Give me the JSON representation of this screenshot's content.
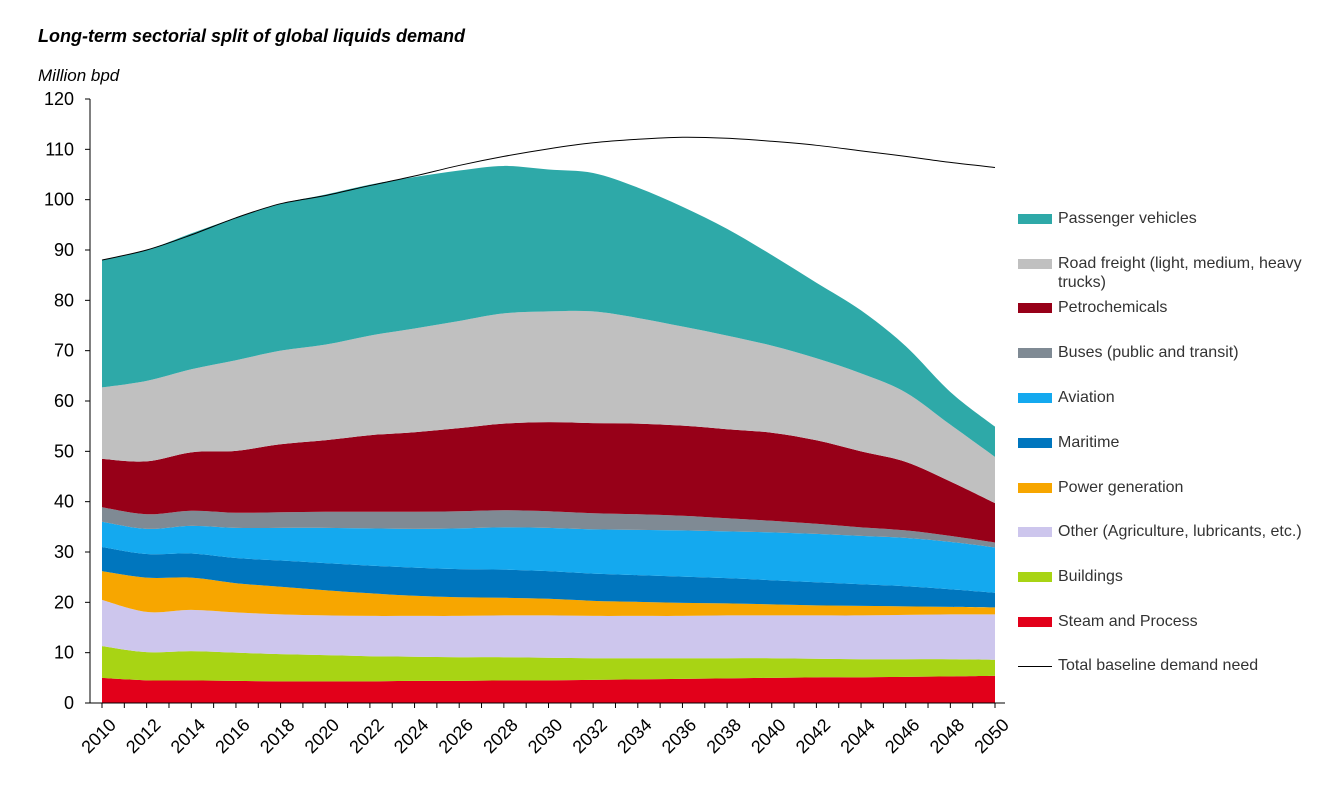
{
  "chart_data": {
    "type": "area",
    "title": "Long-term sectorial split of global liquids demand",
    "ylabel": "Million bpd",
    "xlabel": "",
    "ylim": [
      0,
      120
    ],
    "yticks": [
      "0",
      "10",
      "20",
      "30",
      "40",
      "50",
      "60",
      "70",
      "80",
      "90",
      "100",
      "110",
      "120"
    ],
    "xlim": [
      2010,
      2050
    ],
    "xticks": [
      "2010",
      "2012",
      "2014",
      "2016",
      "2018",
      "2020",
      "2022",
      "2024",
      "2026",
      "2028",
      "2030",
      "2032",
      "2034",
      "2036",
      "2038",
      "2040",
      "2042",
      "2044",
      "2046",
      "2048",
      "2050"
    ],
    "x": [
      2010,
      2012,
      2014,
      2016,
      2018,
      2020,
      2022,
      2024,
      2026,
      2028,
      2030,
      2032,
      2034,
      2036,
      2038,
      2040,
      2042,
      2044,
      2046,
      2048,
      2050
    ],
    "stacked": true,
    "series": [
      {
        "name": "Steam and Process",
        "color": "#e2001a",
        "values": [
          5.0,
          4.5,
          4.5,
          4.4,
          4.3,
          4.3,
          4.3,
          4.4,
          4.4,
          4.5,
          4.5,
          4.6,
          4.7,
          4.8,
          4.9,
          5.0,
          5.1,
          5.1,
          5.2,
          5.3,
          5.4
        ]
      },
      {
        "name": "Buildings",
        "color": "#a8d414",
        "values": [
          6.3,
          5.6,
          5.8,
          5.6,
          5.4,
          5.2,
          5.0,
          4.8,
          4.7,
          4.6,
          4.5,
          4.3,
          4.2,
          4.1,
          4.0,
          3.9,
          3.7,
          3.6,
          3.5,
          3.4,
          3.2
        ]
      },
      {
        "name": "Other (Agriculture, lubricants, etc.)",
        "color": "#cdc6ed",
        "values": [
          9.2,
          8.0,
          8.2,
          8.0,
          7.9,
          7.9,
          8.0,
          8.1,
          8.2,
          8.3,
          8.4,
          8.4,
          8.4,
          8.4,
          8.5,
          8.5,
          8.6,
          8.7,
          8.8,
          8.9,
          9.0
        ]
      },
      {
        "name": "Power generation",
        "color": "#f7a600",
        "values": [
          5.7,
          6.8,
          6.4,
          5.8,
          5.5,
          5.0,
          4.5,
          4.0,
          3.7,
          3.5,
          3.3,
          3.0,
          2.8,
          2.6,
          2.4,
          2.2,
          2.0,
          1.9,
          1.7,
          1.5,
          1.4
        ]
      },
      {
        "name": "Maritime",
        "color": "#0076be",
        "values": [
          4.8,
          4.7,
          4.8,
          5.0,
          5.2,
          5.4,
          5.5,
          5.6,
          5.6,
          5.6,
          5.5,
          5.4,
          5.3,
          5.2,
          5.0,
          4.8,
          4.6,
          4.3,
          4.0,
          3.5,
          2.9
        ]
      },
      {
        "name": "Aviation",
        "color": "#14a9ef",
        "values": [
          5.0,
          5.0,
          5.5,
          6.0,
          6.5,
          7.0,
          7.4,
          7.7,
          8.1,
          8.4,
          8.6,
          8.8,
          9.0,
          9.2,
          9.3,
          9.5,
          9.6,
          9.6,
          9.6,
          9.4,
          9.0
        ]
      },
      {
        "name": "Buses (public and transit)",
        "color": "#7f8a94",
        "values": [
          2.9,
          2.9,
          3.0,
          3.0,
          3.1,
          3.2,
          3.3,
          3.4,
          3.4,
          3.4,
          3.3,
          3.2,
          3.1,
          2.9,
          2.6,
          2.3,
          2.0,
          1.7,
          1.5,
          1.2,
          1.0
        ]
      },
      {
        "name": "Petrochemicals",
        "color": "#970018",
        "values": [
          9.6,
          10.5,
          11.6,
          12.3,
          13.5,
          14.2,
          15.2,
          15.8,
          16.5,
          17.2,
          17.7,
          17.9,
          18.0,
          17.9,
          17.7,
          17.5,
          16.6,
          15.1,
          13.6,
          10.8,
          7.8
        ]
      },
      {
        "name": "Road freight (light, medium, heavy trucks)",
        "color": "#c0c0c0",
        "values": [
          14.2,
          16.0,
          16.5,
          18.0,
          18.6,
          19.0,
          19.8,
          20.6,
          21.3,
          21.9,
          22.0,
          22.2,
          21.0,
          19.7,
          18.6,
          17.3,
          16.3,
          15.5,
          13.8,
          11.3,
          9.2
        ]
      },
      {
        "name": "Passenger vehicles",
        "color": "#2ea9a8",
        "values": [
          25.3,
          26.0,
          27.0,
          28.3,
          29.2,
          29.8,
          30.0,
          30.1,
          29.9,
          29.3,
          28.2,
          27.5,
          25.9,
          23.8,
          21.2,
          18.0,
          15.0,
          12.5,
          9.2,
          6.5,
          6.0
        ]
      }
    ],
    "total_line": {
      "name": "Total baseline demand need",
      "color": "#000000",
      "values": [
        88.0,
        90.0,
        93.0,
        96.4,
        99.2,
        100.8,
        102.8,
        104.7,
        106.8,
        108.6,
        110.1,
        111.3,
        112.0,
        112.4,
        112.2,
        111.6,
        110.8,
        109.7,
        108.6,
        107.4,
        106.4
      ]
    },
    "legend_order": [
      "Passenger vehicles",
      "Road freight (light, medium, heavy trucks)",
      "Petrochemicals",
      "Buses (public and transit)",
      "Aviation",
      "Maritime",
      "Power generation",
      "Other (Agriculture, lubricants, etc.)",
      "Buildings",
      "Steam and Process",
      "Total baseline demand need"
    ],
    "legend_position": "right",
    "grid": false
  }
}
